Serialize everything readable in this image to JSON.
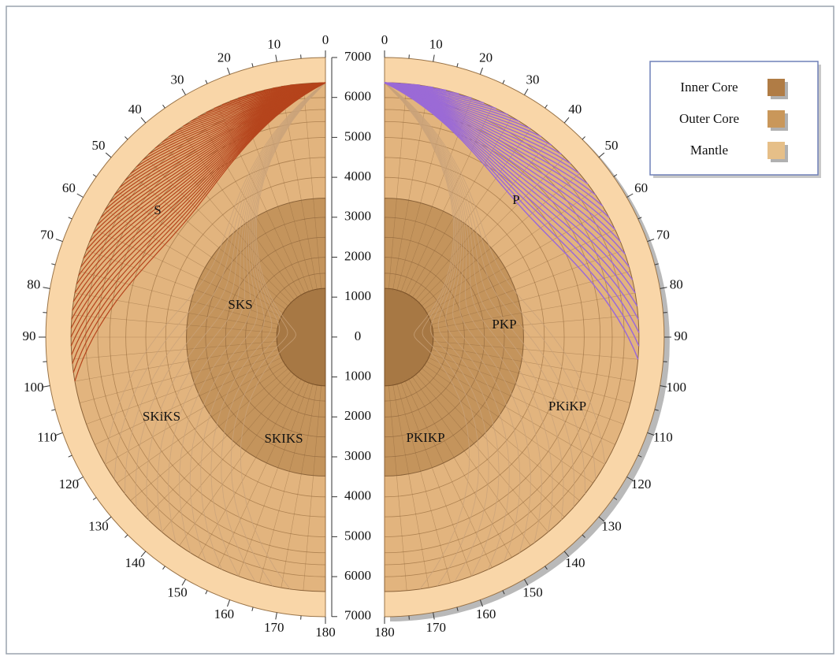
{
  "angle_labels": [
    "0",
    "10",
    "20",
    "30",
    "40",
    "50",
    "60",
    "70",
    "80",
    "90",
    "100",
    "110",
    "120",
    "130",
    "140",
    "150",
    "160",
    "170",
    "180"
  ],
  "depth_labels": [
    "7000",
    "6000",
    "5000",
    "4000",
    "3000",
    "2000",
    "1000",
    "0",
    "1000",
    "2000",
    "3000",
    "4000",
    "5000",
    "6000",
    "7000"
  ],
  "regions": {
    "s": "S",
    "sks": "SKS",
    "skiks_lower": "SKiKS",
    "skiks_upper": "SKIKS",
    "p": "P",
    "pkp": "PKP",
    "pkikp_lower": "PKiKP",
    "pkikp_upper": "PKIKP"
  },
  "legend": [
    "Inner Core",
    "Outer Core",
    "Mantle"
  ]
}
